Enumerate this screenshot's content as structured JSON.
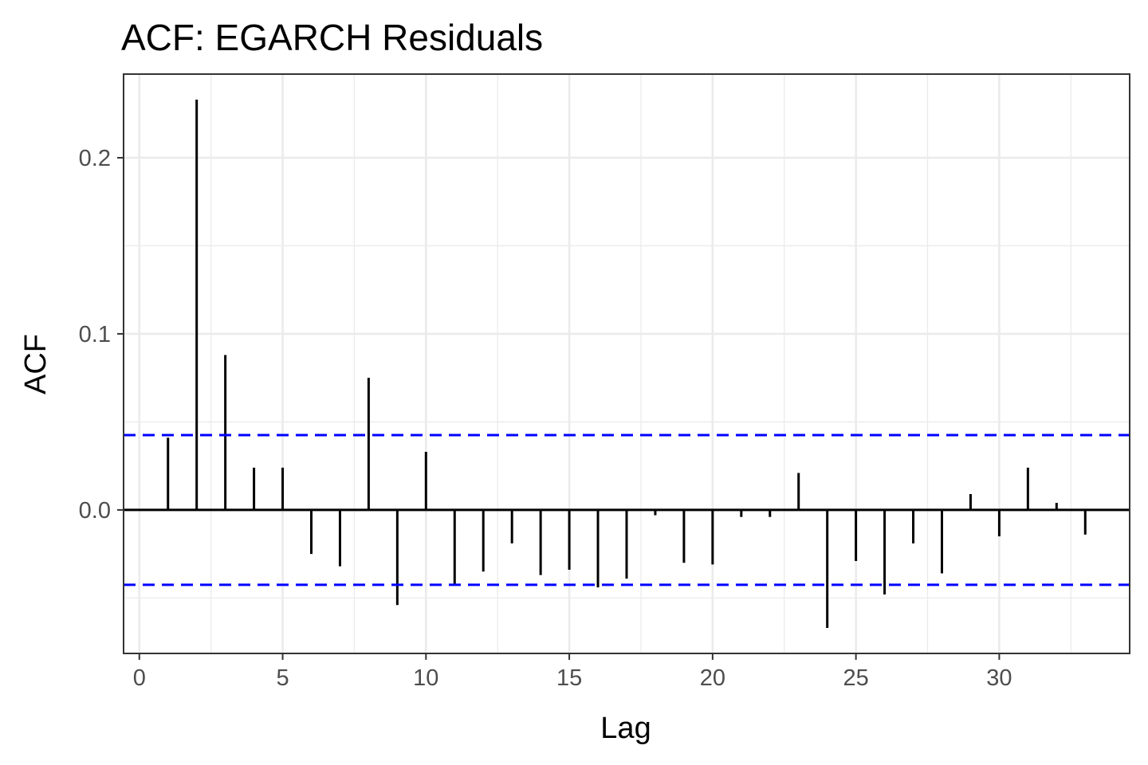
{
  "chart_data": {
    "type": "bar",
    "title": "ACF: EGARCH Residuals",
    "xlabel": "Lag",
    "ylabel": "ACF",
    "x": [
      1,
      2,
      3,
      4,
      5,
      6,
      7,
      8,
      9,
      10,
      11,
      12,
      13,
      14,
      15,
      16,
      17,
      18,
      19,
      20,
      21,
      22,
      23,
      24,
      25,
      26,
      27,
      28,
      29,
      30,
      31,
      32,
      33
    ],
    "values": [
      0.041,
      0.233,
      0.088,
      0.024,
      0.024,
      -0.025,
      -0.032,
      0.075,
      -0.054,
      0.033,
      -0.043,
      -0.035,
      -0.019,
      -0.037,
      -0.034,
      -0.044,
      -0.039,
      -0.003,
      -0.03,
      -0.031,
      -0.004,
      -0.004,
      0.021,
      -0.067,
      -0.029,
      -0.048,
      -0.019,
      -0.036,
      0.009,
      -0.015,
      0.024,
      0.004,
      -0.014
    ],
    "confidence_bounds": [
      -0.0425,
      0.0425
    ],
    "xlim": [
      -0.55,
      34.55
    ],
    "ylim": [
      -0.0815,
      0.2475
    ],
    "x_ticks": [
      0,
      5,
      10,
      15,
      20,
      25,
      30
    ],
    "x_tick_labels": [
      "0",
      "5",
      "10",
      "15",
      "20",
      "25",
      "30"
    ],
    "y_ticks": [
      0,
      0.1,
      0.2
    ],
    "y_tick_labels": [
      "0.0",
      "0.1",
      "0.2"
    ],
    "x_minor_ticks": [
      2.5,
      7.5,
      12.5,
      17.5,
      22.5,
      27.5,
      32.5
    ],
    "y_minor_ticks": [
      -0.05,
      0.05,
      0.15
    ],
    "grid": true,
    "legend": "none",
    "colors": {
      "bars": "#000000",
      "bounds": "#0000ff",
      "grid": "#ebebeb",
      "panel_border": "#333333",
      "zero_line": "#000000"
    }
  }
}
